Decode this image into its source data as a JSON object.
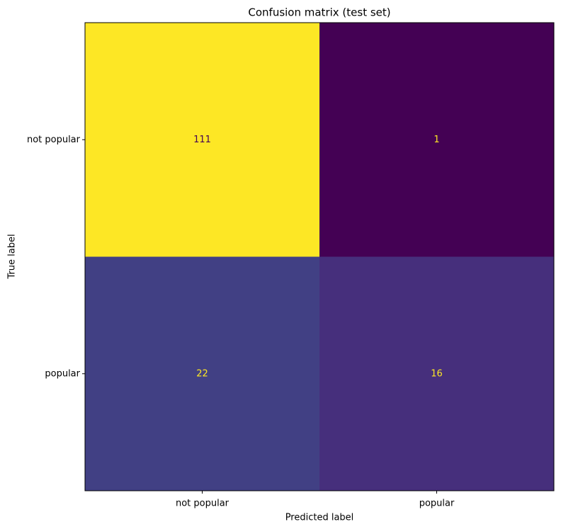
{
  "chart_data": {
    "type": "heatmap",
    "title": "Confusion matrix (test set)",
    "x_label": "Predicted label",
    "y_label": "True label",
    "x_categories": [
      "not popular",
      "popular"
    ],
    "y_categories": [
      "not popular",
      "popular"
    ],
    "values": [
      [
        111,
        1
      ],
      [
        22,
        16
      ]
    ],
    "colormap": "viridis"
  }
}
